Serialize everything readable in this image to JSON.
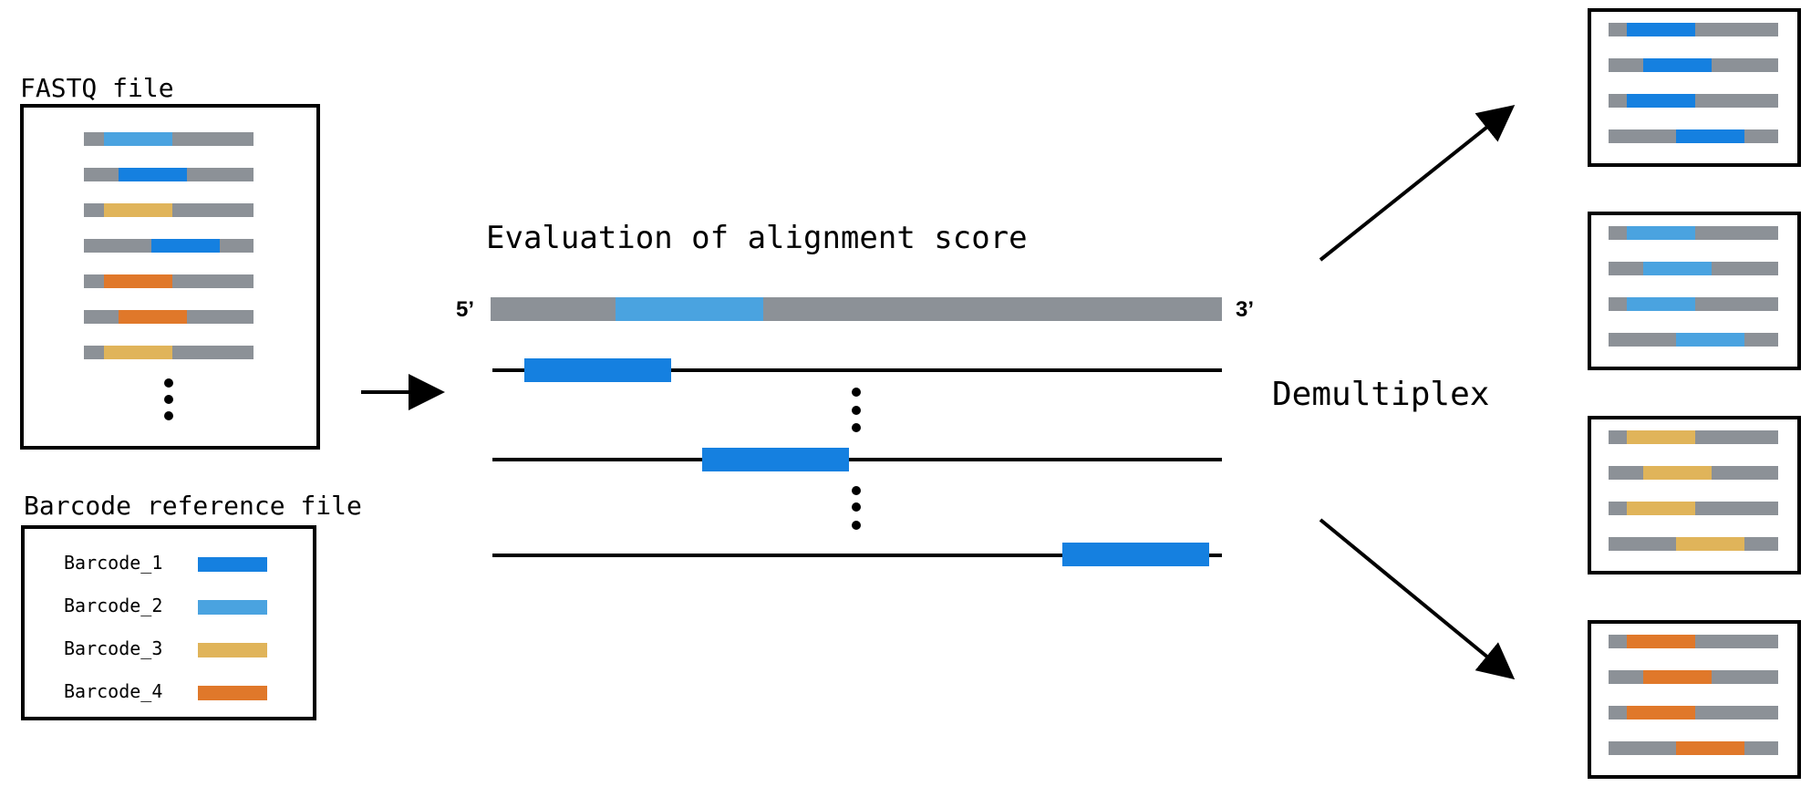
{
  "colors": {
    "gray": "#8c9197",
    "barcode_1": "#1580e0",
    "barcode_2": "#4aa3e0",
    "barcode_3": "#e0b45a",
    "barcode_4": "#e0782a",
    "line": "#000000"
  },
  "fastq": {
    "title": "FASTQ file",
    "reads": [
      "barcode_2",
      "barcode_1",
      "barcode_3",
      "barcode_1",
      "barcode_4",
      "barcode_4",
      "barcode_3"
    ]
  },
  "reference": {
    "title": "Barcode reference file",
    "items": [
      {
        "label": "Barcode_1",
        "color": "barcode_1"
      },
      {
        "label": "Barcode_2",
        "color": "barcode_2"
      },
      {
        "label": "Barcode_3",
        "color": "barcode_3"
      },
      {
        "label": "Barcode_4",
        "color": "barcode_4"
      }
    ]
  },
  "alignment": {
    "title": "Evaluation of alignment score",
    "five_prime": "5’",
    "three_prime": "3’",
    "query_barcode": "barcode_2"
  },
  "demultiplex": {
    "label": "Demultiplex",
    "groups": [
      "barcode_1",
      "barcode_2",
      "barcode_3",
      "barcode_4"
    ]
  }
}
